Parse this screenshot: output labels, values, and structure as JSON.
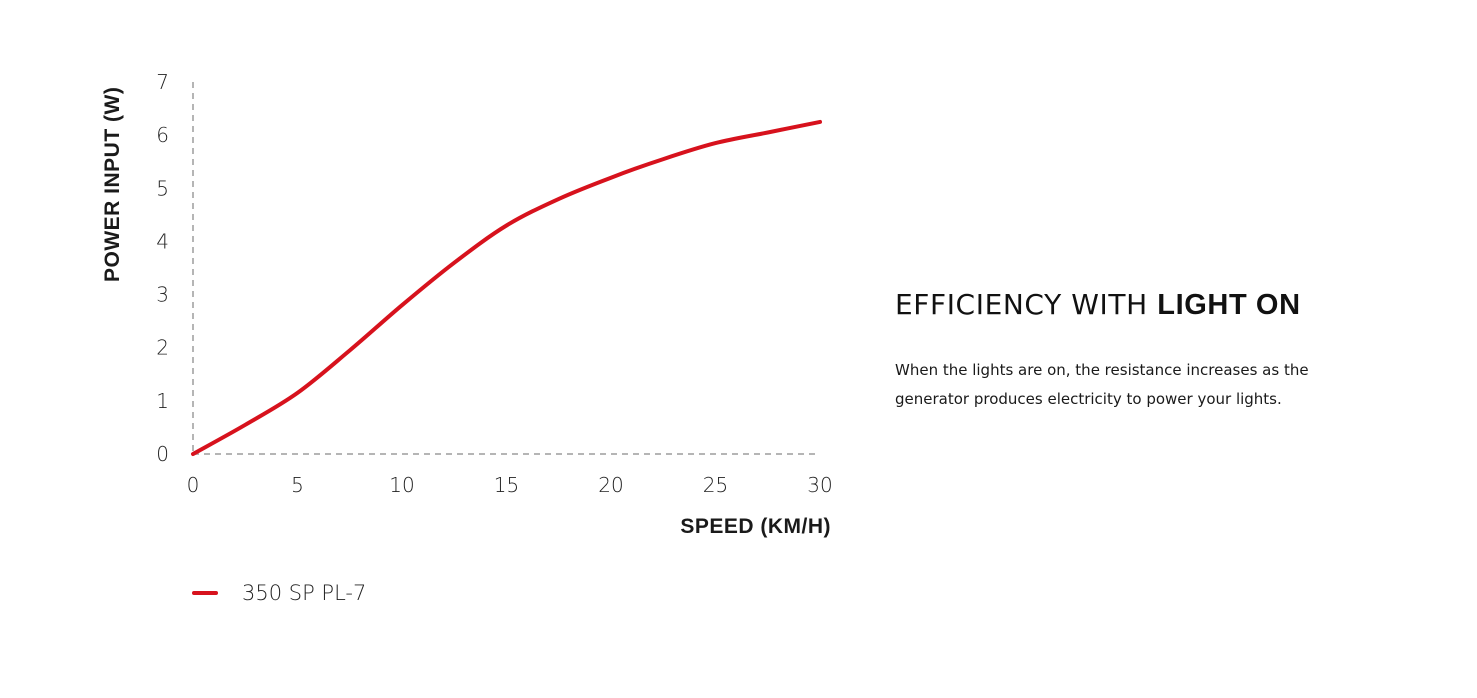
{
  "chart_data": {
    "type": "line",
    "title": "",
    "xlabel": "SPEED (KM/H)",
    "ylabel": "POWER INPUT (W)",
    "xlim": [
      0,
      30
    ],
    "ylim": [
      0,
      7
    ],
    "xticks": [
      "0",
      "5",
      "10",
      "15",
      "20",
      "25",
      "30"
    ],
    "yticks": [
      "0",
      "1",
      "2",
      "3",
      "4",
      "5",
      "6",
      "7"
    ],
    "grid": false,
    "legend_position": "bottom-left",
    "series": [
      {
        "name": "350 SP PL-7",
        "color": "#d7121d",
        "x": [
          0,
          2.5,
          5,
          7.5,
          10,
          12.5,
          15,
          17.5,
          20,
          22.5,
          25,
          27.5,
          30
        ],
        "y": [
          0,
          0.55,
          1.15,
          1.95,
          2.8,
          3.6,
          4.3,
          4.8,
          5.2,
          5.55,
          5.85,
          6.05,
          6.25
        ]
      }
    ]
  },
  "info": {
    "title_light": "EFFICIENCY WITH ",
    "title_bold": "LIGHT ON",
    "body": "When the lights are on, the resistance increases as the generator produces electricity to power your lights."
  },
  "colors": {
    "axis_dash": "#b5b5b5",
    "text": "#1a1a1a"
  }
}
